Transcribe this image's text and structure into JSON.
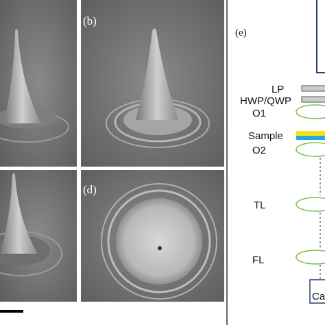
{
  "panels": [
    {
      "label": "(b)"
    },
    {
      "label": "(d)"
    }
  ],
  "setup": {
    "label": "(e)",
    "components": [
      "LP",
      "HWP/QWP",
      "O1",
      "Sample",
      "O2",
      "TL",
      "FL",
      "Ca"
    ]
  }
}
